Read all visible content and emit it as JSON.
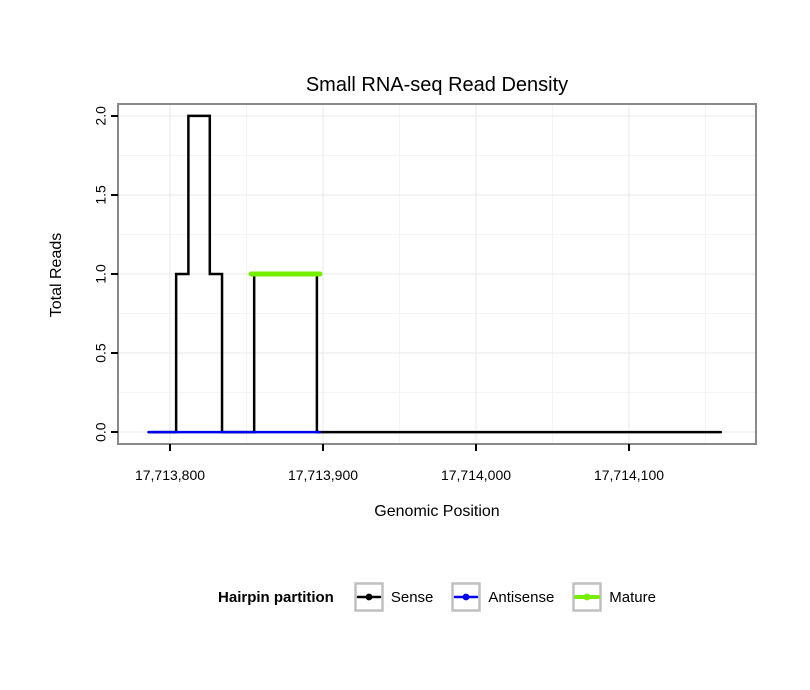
{
  "chart_data": {
    "type": "line",
    "title": "Small RNA-seq Read Density",
    "xlabel": "Genomic Position",
    "ylabel": "Total Reads",
    "xlim": [
      17713766,
      17714183
    ],
    "ylim": [
      0,
      2
    ],
    "xticks": [
      17713800,
      17713900,
      17714000,
      17714100
    ],
    "xtick_labels": [
      "17,713,800",
      "17,713,900",
      "17,714,000",
      "17,714,100"
    ],
    "yticks": [
      0,
      0.5,
      1,
      1.5,
      2
    ],
    "ytick_labels": [
      "0.0",
      "0.5",
      "1.0",
      "1.5",
      "2.0"
    ],
    "grid": true,
    "legend": {
      "title": "Hairpin partition",
      "position": "bottom",
      "entries": [
        {
          "label": "Sense",
          "color": "#000000"
        },
        {
          "label": "Antisense",
          "color": "#0000EE"
        },
        {
          "label": "Mature",
          "color": "#76EE00"
        }
      ]
    },
    "series": [
      {
        "name": "Sense",
        "color": "#000000",
        "width": 2.5,
        "points": [
          [
            17713786,
            0
          ],
          [
            17713804,
            0
          ],
          [
            17713804,
            1
          ],
          [
            17713812,
            1
          ],
          [
            17713812,
            2
          ],
          [
            17713826,
            2
          ],
          [
            17713826,
            1
          ],
          [
            17713834,
            1
          ],
          [
            17713834,
            0
          ],
          [
            17713855,
            0
          ],
          [
            17713855,
            1
          ],
          [
            17713896,
            1
          ],
          [
            17713896,
            0
          ],
          [
            17714160,
            0
          ]
        ]
      },
      {
        "name": "Antisense",
        "color": "#0000EE",
        "width": 2.5,
        "points": [
          [
            17713786,
            0
          ],
          [
            17713898,
            0
          ]
        ]
      },
      {
        "name": "Mature",
        "color": "#76EE00",
        "width": 5,
        "points": [
          [
            17713853,
            1
          ],
          [
            17713898,
            1
          ]
        ]
      }
    ]
  }
}
